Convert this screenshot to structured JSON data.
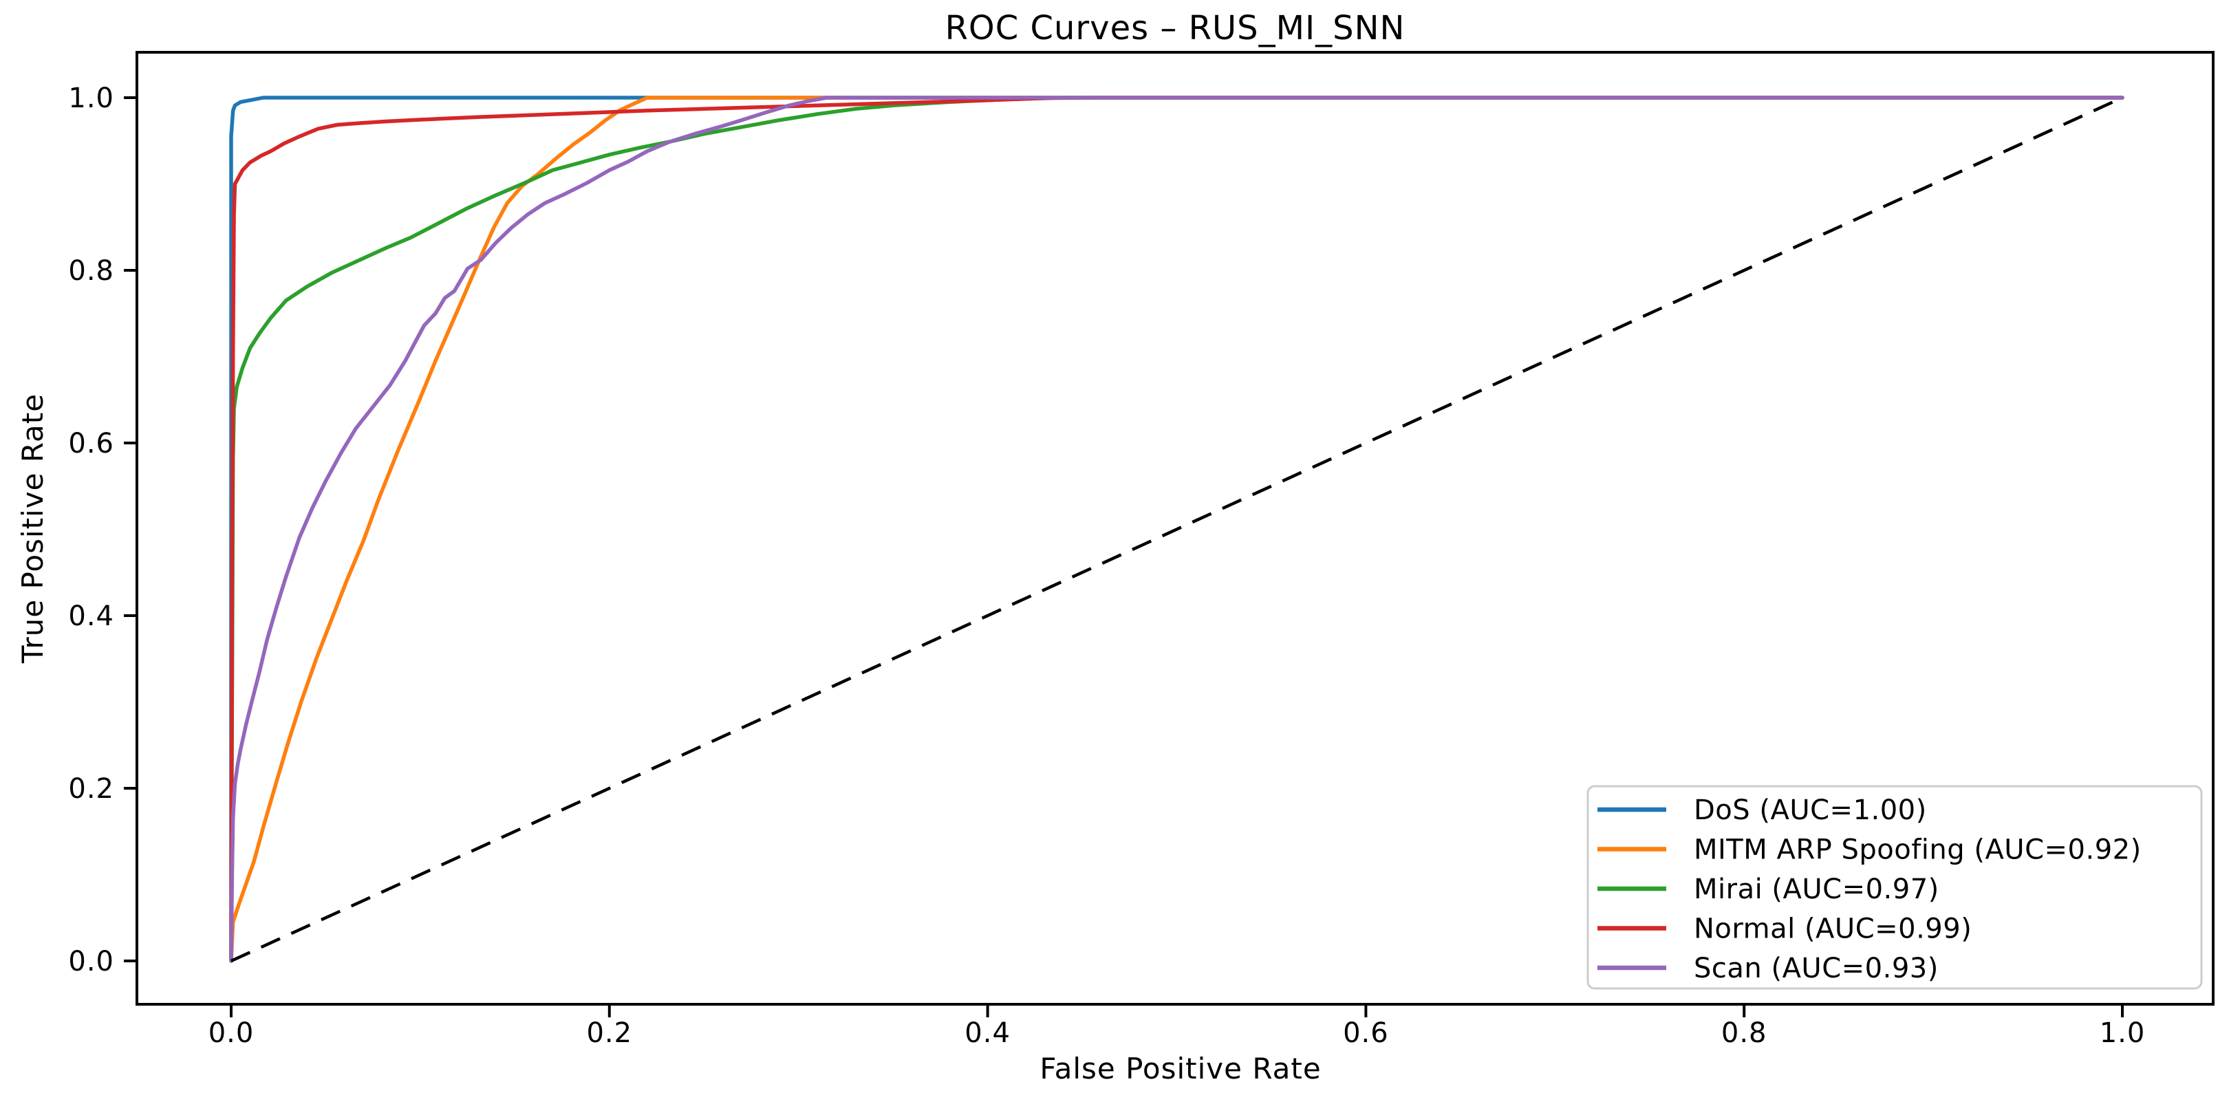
{
  "figure": {
    "title": "ROC Curves – RUS_MI_SNN",
    "xlabel": "False Positive Rate",
    "ylabel": "True Positive Rate",
    "background": "#ffffff"
  },
  "chart_data": {
    "type": "line",
    "title": "ROC Curves – RUS_MI_SNN",
    "xlabel": "False Positive Rate",
    "ylabel": "True Positive Rate",
    "xlim": [
      -0.05,
      1.05
    ],
    "ylim": [
      -0.05,
      1.05
    ],
    "grid": false,
    "x_tick_values": [
      0.0,
      0.2,
      0.4,
      0.6,
      0.8,
      1.0
    ],
    "x_tick_labels": [
      "0.0",
      "0.2",
      "0.4",
      "0.6",
      "0.8",
      "1.0"
    ],
    "y_tick_values": [
      0.0,
      0.2,
      0.4,
      0.6,
      0.8,
      1.0
    ],
    "y_tick_labels": [
      "0.0",
      "0.2",
      "0.4",
      "0.6",
      "0.8",
      "1.0"
    ],
    "legend": {
      "position": "lower right",
      "edge_color": "#cccccc",
      "fill_color": "#ffffff"
    },
    "series": [
      {
        "name": "DoS",
        "auc": "1.00",
        "label": "DoS (AUC=1.00)",
        "color": "#1f77b4",
        "points": [
          [
            0,
            0
          ],
          [
            0,
            0.955
          ],
          [
            0.001,
            0.985
          ],
          [
            0.002,
            0.991
          ],
          [
            0.005,
            0.995
          ],
          [
            0.017,
            1.0
          ],
          [
            1,
            1
          ]
        ]
      },
      {
        "name": "MITM ARP Spoofing",
        "auc": "0.92",
        "label": "MITM ARP Spoofing (AUC=0.92)",
        "color": "#ff7f0e",
        "points": [
          [
            0,
            0
          ],
          [
            0.001,
            0.045
          ],
          [
            0.004,
            0.065
          ],
          [
            0.008,
            0.09
          ],
          [
            0.012,
            0.115
          ],
          [
            0.017,
            0.155
          ],
          [
            0.024,
            0.208
          ],
          [
            0.03,
            0.252
          ],
          [
            0.037,
            0.3
          ],
          [
            0.045,
            0.35
          ],
          [
            0.053,
            0.395
          ],
          [
            0.061,
            0.44
          ],
          [
            0.07,
            0.487
          ],
          [
            0.078,
            0.535
          ],
          [
            0.088,
            0.59
          ],
          [
            0.099,
            0.647
          ],
          [
            0.108,
            0.695
          ],
          [
            0.116,
            0.735
          ],
          [
            0.123,
            0.77
          ],
          [
            0.132,
            0.816
          ],
          [
            0.139,
            0.85
          ],
          [
            0.146,
            0.878
          ],
          [
            0.154,
            0.898
          ],
          [
            0.162,
            0.911
          ],
          [
            0.172,
            0.93
          ],
          [
            0.181,
            0.946
          ],
          [
            0.19,
            0.96
          ],
          [
            0.198,
            0.974
          ],
          [
            0.206,
            0.986
          ],
          [
            0.213,
            0.993
          ],
          [
            0.22,
            1.0
          ],
          [
            1,
            1
          ]
        ]
      },
      {
        "name": "Mirai",
        "auc": "0.97",
        "label": "Mirai (AUC=0.97)",
        "color": "#2ca02c",
        "points": [
          [
            0,
            0
          ],
          [
            0.0005,
            0.3
          ],
          [
            0.001,
            0.58
          ],
          [
            0.0015,
            0.64
          ],
          [
            0.003,
            0.665
          ],
          [
            0.006,
            0.687
          ],
          [
            0.01,
            0.71
          ],
          [
            0.015,
            0.727
          ],
          [
            0.021,
            0.745
          ],
          [
            0.029,
            0.765
          ],
          [
            0.04,
            0.781
          ],
          [
            0.053,
            0.797
          ],
          [
            0.068,
            0.812
          ],
          [
            0.082,
            0.826
          ],
          [
            0.095,
            0.838
          ],
          [
            0.11,
            0.855
          ],
          [
            0.125,
            0.872
          ],
          [
            0.14,
            0.887
          ],
          [
            0.155,
            0.901
          ],
          [
            0.17,
            0.916
          ],
          [
            0.185,
            0.925
          ],
          [
            0.2,
            0.934
          ],
          [
            0.216,
            0.942
          ],
          [
            0.232,
            0.949
          ],
          [
            0.25,
            0.958
          ],
          [
            0.27,
            0.966
          ],
          [
            0.29,
            0.974
          ],
          [
            0.31,
            0.981
          ],
          [
            0.33,
            0.987
          ],
          [
            0.35,
            0.991
          ],
          [
            0.38,
            0.995
          ],
          [
            0.41,
            0.998
          ],
          [
            0.44,
            1.0
          ],
          [
            1,
            1
          ]
        ]
      },
      {
        "name": "Normal",
        "auc": "0.99",
        "label": "Normal (AUC=0.99)",
        "color": "#d62728",
        "points": [
          [
            0,
            0
          ],
          [
            0.0005,
            0.45
          ],
          [
            0.001,
            0.7
          ],
          [
            0.0015,
            0.865
          ],
          [
            0.002,
            0.9
          ],
          [
            0.006,
            0.916
          ],
          [
            0.01,
            0.925
          ],
          [
            0.016,
            0.933
          ],
          [
            0.021,
            0.938
          ],
          [
            0.028,
            0.947
          ],
          [
            0.036,
            0.955
          ],
          [
            0.046,
            0.964
          ],
          [
            0.056,
            0.9685
          ],
          [
            0.068,
            0.9705
          ],
          [
            0.082,
            0.9725
          ],
          [
            0.1,
            0.9745
          ],
          [
            0.13,
            0.9775
          ],
          [
            0.16,
            0.98
          ],
          [
            0.19,
            0.9825
          ],
          [
            0.22,
            0.985
          ],
          [
            0.25,
            0.987
          ],
          [
            0.28,
            0.989
          ],
          [
            0.31,
            0.991
          ],
          [
            0.34,
            0.993
          ],
          [
            0.37,
            0.995
          ],
          [
            0.4,
            0.997
          ],
          [
            0.43,
            0.9995
          ],
          [
            0.46,
            1.0
          ],
          [
            1,
            1
          ]
        ]
      },
      {
        "name": "Scan",
        "auc": "0.93",
        "label": "Scan (AUC=0.93)",
        "color": "#9467bd",
        "points": [
          [
            0,
            0
          ],
          [
            0.0005,
            0.1
          ],
          [
            0.001,
            0.165
          ],
          [
            0.002,
            0.205
          ],
          [
            0.0035,
            0.228
          ],
          [
            0.005,
            0.245
          ],
          [
            0.008,
            0.275
          ],
          [
            0.011,
            0.301
          ],
          [
            0.015,
            0.335
          ],
          [
            0.019,
            0.372
          ],
          [
            0.024,
            0.41
          ],
          [
            0.029,
            0.445
          ],
          [
            0.036,
            0.49
          ],
          [
            0.043,
            0.525
          ],
          [
            0.05,
            0.556
          ],
          [
            0.058,
            0.588
          ],
          [
            0.066,
            0.617
          ],
          [
            0.075,
            0.642
          ],
          [
            0.084,
            0.667
          ],
          [
            0.092,
            0.695
          ],
          [
            0.102,
            0.736
          ],
          [
            0.108,
            0.75
          ],
          [
            0.113,
            0.768
          ],
          [
            0.118,
            0.776
          ],
          [
            0.125,
            0.802
          ],
          [
            0.132,
            0.812
          ],
          [
            0.14,
            0.832
          ],
          [
            0.148,
            0.849
          ],
          [
            0.157,
            0.865
          ],
          [
            0.166,
            0.878
          ],
          [
            0.176,
            0.888
          ],
          [
            0.188,
            0.901
          ],
          [
            0.2,
            0.916
          ],
          [
            0.21,
            0.926
          ],
          [
            0.22,
            0.938
          ],
          [
            0.232,
            0.949
          ],
          [
            0.245,
            0.958
          ],
          [
            0.258,
            0.966
          ],
          [
            0.27,
            0.974
          ],
          [
            0.283,
            0.983
          ],
          [
            0.295,
            0.991
          ],
          [
            0.305,
            0.996
          ],
          [
            0.315,
            1.0
          ],
          [
            1,
            1
          ]
        ]
      }
    ],
    "diagonal": {
      "style": "dashed",
      "color": "#000000",
      "points": [
        [
          0,
          0
        ],
        [
          1,
          1
        ]
      ]
    }
  }
}
